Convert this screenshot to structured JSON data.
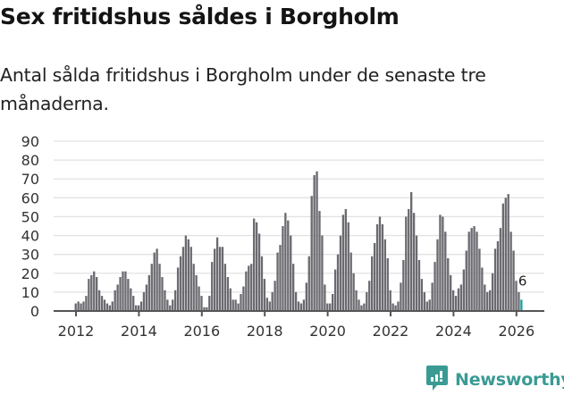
{
  "header": {
    "title": "Sex fritidshus såldes i Borgholm",
    "subtitle": "Antal sålda fritidshus i Borgholm under de senaste tre månaderna."
  },
  "brand": {
    "name": "Newsworthy",
    "icon": "newsworthy-logo-icon",
    "color": "#3a9a94"
  },
  "colors": {
    "bar": "#6b6a70",
    "highlight": "#1aa3a0",
    "grid": "#e2e2e2",
    "axis": "#555555"
  },
  "chart_data": {
    "type": "bar",
    "title": "Sex fritidshus såldes i Borgholm",
    "subtitle": "Antal sålda fritidshus i Borgholm under de senaste tre månaderna.",
    "xlabel": "",
    "ylabel": "",
    "ylim": [
      0,
      90
    ],
    "yticks": [
      0,
      10,
      20,
      30,
      40,
      50,
      60,
      70,
      80,
      90
    ],
    "xticks": [
      "2012",
      "2014",
      "2016",
      "2018",
      "2020",
      "2022",
      "2024",
      "2026"
    ],
    "grid": true,
    "legend": null,
    "frequency": "monthly",
    "start": "2012-01",
    "end": "2026-02",
    "annotation": {
      "label": "6",
      "target": "last"
    },
    "values": [
      4,
      5,
      4,
      5,
      8,
      17,
      19,
      21,
      18,
      11,
      8,
      6,
      4,
      3,
      5,
      11,
      14,
      18,
      21,
      21,
      17,
      12,
      8,
      3,
      3,
      5,
      10,
      14,
      19,
      25,
      31,
      33,
      25,
      18,
      11,
      6,
      3,
      6,
      11,
      23,
      29,
      34,
      40,
      38,
      34,
      25,
      19,
      13,
      8,
      2,
      2,
      8,
      26,
      33,
      39,
      34,
      34,
      25,
      18,
      12,
      6,
      6,
      4,
      9,
      13,
      21,
      24,
      25,
      49,
      47,
      41,
      29,
      17,
      7,
      5,
      10,
      16,
      31,
      35,
      45,
      52,
      48,
      40,
      25,
      10,
      5,
      4,
      6,
      15,
      29,
      61,
      72,
      74,
      53,
      40,
      14,
      4,
      4,
      9,
      22,
      30,
      40,
      51,
      54,
      47,
      31,
      20,
      11,
      6,
      3,
      4,
      10,
      16,
      29,
      36,
      46,
      50,
      46,
      38,
      28,
      11,
      4,
      3,
      5,
      15,
      27,
      50,
      54,
      63,
      52,
      40,
      27,
      17,
      10,
      5,
      6,
      15,
      26,
      38,
      51,
      50,
      42,
      28,
      19,
      11,
      8,
      12,
      14,
      22,
      32,
      42,
      44,
      45,
      42,
      33,
      23,
      14,
      10,
      11,
      20,
      33,
      37,
      44,
      57,
      60,
      62,
      42,
      32,
      16,
      10,
      6
    ]
  }
}
